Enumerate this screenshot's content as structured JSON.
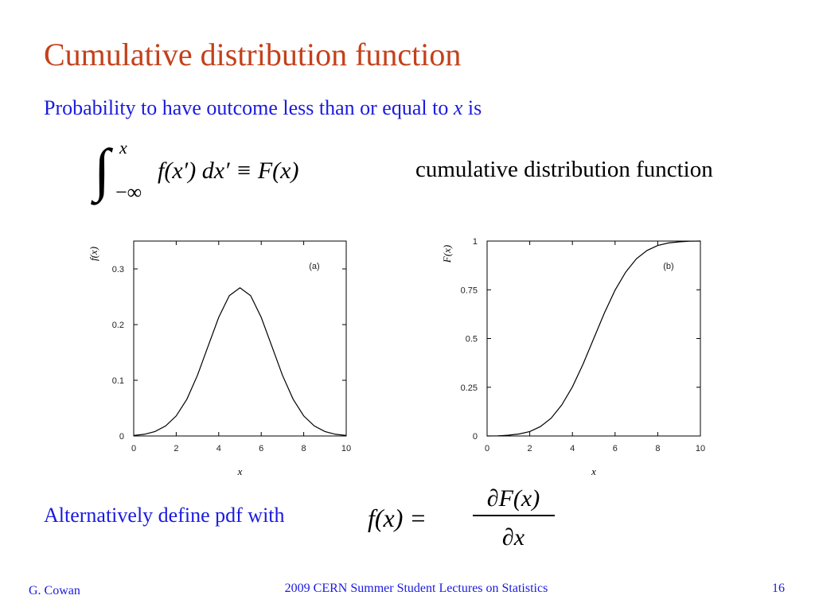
{
  "slide": {
    "title": "Cumulative distribution function",
    "intro": [
      "Probability to have outcome less than or equal to ",
      "x",
      " is"
    ],
    "formula_cdf": {
      "symbol": "∫",
      "upper": "x",
      "lower": "−∞",
      "body": "f(x′) dx′ ≡ F(x)"
    },
    "formula_cdf_label": "cumulative distribution function",
    "alt_text": "Alternatively define pdf with",
    "formula_pdf": {
      "lhs": "f(x) =",
      "numerator": "∂F(x)",
      "denominator": "∂x"
    },
    "footer": {
      "author": "G. Cowan",
      "course": "2009 CERN Summer Student Lectures on Statistics",
      "page": "16"
    }
  },
  "chart_data": [
    {
      "type": "line",
      "panel_label": "(a)",
      "ylabel": "f(x)",
      "xlabel": "x",
      "x": [
        0,
        0.5,
        1,
        1.5,
        2,
        2.5,
        3,
        3.5,
        4,
        4.5,
        5,
        5.5,
        6,
        6.5,
        7,
        7.5,
        8,
        8.5,
        9,
        9.5,
        10
      ],
      "values": [
        0.001,
        0.003,
        0.008,
        0.018,
        0.036,
        0.066,
        0.109,
        0.161,
        0.213,
        0.252,
        0.266,
        0.252,
        0.213,
        0.161,
        0.109,
        0.066,
        0.036,
        0.018,
        0.008,
        0.003,
        0.001
      ],
      "color": "#000000",
      "xlim": [
        0,
        10
      ],
      "xticks": [
        0,
        2,
        4,
        6,
        8,
        10
      ],
      "ylim": [
        0,
        0.35
      ],
      "yticks": [
        0,
        0.1,
        0.2,
        0.3
      ]
    },
    {
      "type": "line",
      "panel_label": "(b)",
      "ylabel": "F(x)",
      "xlabel": "x",
      "x": [
        0,
        0.5,
        1,
        1.5,
        2,
        2.5,
        3,
        3.5,
        4,
        4.5,
        5,
        5.5,
        6,
        6.5,
        7,
        7.5,
        8,
        8.5,
        9,
        9.5,
        10
      ],
      "values": [
        0,
        0.001,
        0.004,
        0.01,
        0.023,
        0.048,
        0.091,
        0.159,
        0.252,
        0.369,
        0.5,
        0.631,
        0.748,
        0.841,
        0.909,
        0.952,
        0.977,
        0.99,
        0.996,
        0.999,
        1
      ],
      "color": "#000000",
      "xlim": [
        0,
        10
      ],
      "xticks": [
        0,
        2,
        4,
        6,
        8,
        10
      ],
      "ylim": [
        0,
        1
      ],
      "yticks": [
        0,
        0.25,
        0.5,
        0.75,
        1
      ]
    }
  ]
}
